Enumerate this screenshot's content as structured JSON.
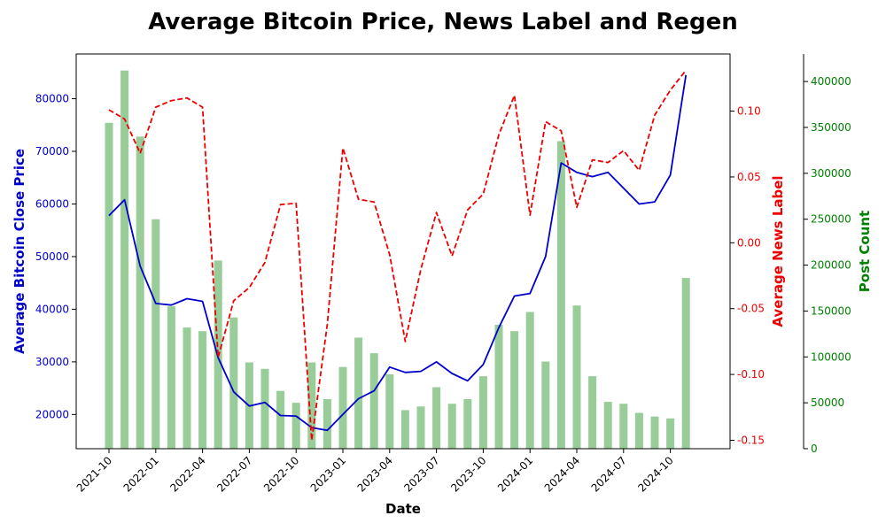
{
  "chart_data": {
    "type": "bar+line",
    "title": "Average Bitcoin Price, News Label and Regen",
    "xlabel": "Date",
    "ylabel_left": "Average Bitcoin Close Price",
    "ylabel_right": "Average News Label",
    "ylabel_right2": "Post Count",
    "colors": {
      "price": "#0000cc",
      "news": "#ee0000",
      "posts": "#98cc98",
      "posts_axis": "#008000"
    },
    "x_months": [
      "2021-10",
      "2021-11",
      "2021-12",
      "2022-01",
      "2022-02",
      "2022-03",
      "2022-04",
      "2022-05",
      "2022-06",
      "2022-07",
      "2022-08",
      "2022-09",
      "2022-10",
      "2022-11",
      "2022-12",
      "2023-01",
      "2023-02",
      "2023-03",
      "2023-04",
      "2023-05",
      "2023-06",
      "2023-07",
      "2023-08",
      "2023-09",
      "2023-10",
      "2023-11",
      "2023-12",
      "2024-01",
      "2024-02",
      "2024-03",
      "2024-04",
      "2024-05",
      "2024-06",
      "2024-07",
      "2024-08",
      "2024-09",
      "2024-10",
      "2024-11"
    ],
    "x_tick_labels": [
      "2021-10",
      "2022-01",
      "2022-04",
      "2022-07",
      "2022-10",
      "2023-01",
      "2023-04",
      "2023-07",
      "2023-10",
      "2024-01",
      "2024-04",
      "2024-07",
      "2024-10"
    ],
    "price_ylim": [
      13500,
      88500
    ],
    "price_ticks": [
      20000,
      30000,
      40000,
      50000,
      60000,
      70000,
      80000
    ],
    "news_ylim": [
      -0.1564,
      0.1434
    ],
    "news_ticks": [
      -0.15,
      -0.1,
      -0.05,
      0.0,
      0.05,
      0.1
    ],
    "news_tick_labels": [
      "-0.15",
      "-0.10",
      "-0.05",
      "0.00",
      "0.05",
      "0.10"
    ],
    "posts_ylim": [
      0,
      430000
    ],
    "posts_ticks": [
      0,
      50000,
      100000,
      150000,
      200000,
      250000,
      300000,
      350000,
      400000
    ],
    "series": [
      {
        "name": "Average Bitcoin Close Price",
        "kind": "line",
        "axis": "left",
        "values": [
          57800,
          60800,
          48200,
          41100,
          40800,
          42000,
          41500,
          30800,
          24300,
          21600,
          22300,
          19800,
          19700,
          17500,
          17000,
          20000,
          23000,
          24500,
          29000,
          28000,
          28200,
          30000,
          27800,
          26400,
          29500,
          36500,
          42500,
          43000,
          50000,
          67800,
          66000,
          65200,
          66000,
          63000,
          60000,
          60400,
          65500,
          84500
        ]
      },
      {
        "name": "Average News Label",
        "kind": "line",
        "axis": "right",
        "values": [
          0.101,
          0.094,
          0.068,
          0.103,
          0.108,
          0.11,
          0.103,
          -0.087,
          -0.044,
          -0.034,
          -0.015,
          0.029,
          0.03,
          -0.15,
          -0.062,
          0.072,
          0.033,
          0.031,
          -0.009,
          -0.075,
          -0.02,
          0.023,
          -0.01,
          0.025,
          0.037,
          0.082,
          0.112,
          0.021,
          0.092,
          0.085,
          0.027,
          0.063,
          0.061,
          0.07,
          0.055,
          0.097,
          0.116,
          0.131
        ]
      },
      {
        "name": "Post Count",
        "kind": "bar",
        "axis": "right2",
        "values": [
          355000,
          412000,
          340000,
          250000,
          155000,
          132000,
          128000,
          205000,
          143000,
          94000,
          87000,
          63000,
          50000,
          94000,
          54000,
          89000,
          121000,
          104000,
          81000,
          42000,
          46000,
          67000,
          49000,
          54000,
          79000,
          135000,
          128000,
          149000,
          95000,
          335000,
          156000,
          79000,
          51000,
          49000,
          39000,
          35000,
          33000,
          186000
        ]
      }
    ]
  }
}
